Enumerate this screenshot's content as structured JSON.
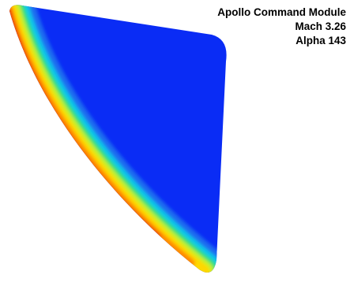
{
  "title": {
    "lines": [
      "Apollo Command Module",
      "Mach 3.26",
      "Alpha 143"
    ]
  }
}
